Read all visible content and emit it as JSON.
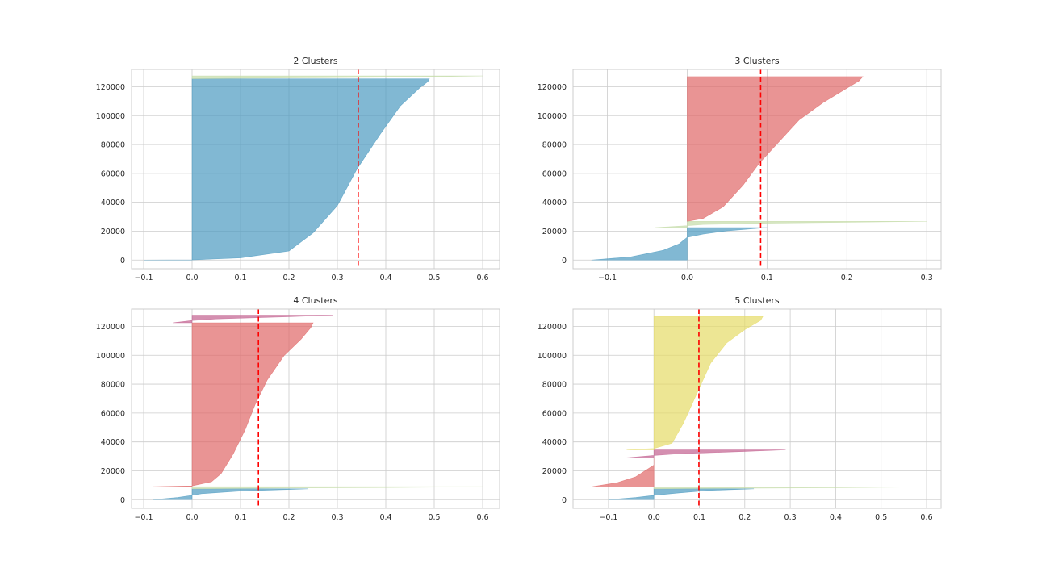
{
  "chart_data": [
    {
      "type": "area",
      "title": "2 Clusters",
      "xlabel": "",
      "ylabel": "",
      "xlim": [
        -0.125,
        0.635
      ],
      "ylim": [
        -6000,
        132000
      ],
      "xticks": [
        -0.1,
        0.0,
        0.1,
        0.2,
        0.3,
        0.4,
        0.5,
        0.6
      ],
      "xtick_labels": [
        "−0.1",
        "0.0",
        "0.1",
        "0.2",
        "0.3",
        "0.4",
        "0.5",
        "0.6"
      ],
      "yticks": [
        0,
        20000,
        40000,
        60000,
        80000,
        100000,
        120000
      ],
      "ytick_labels": [
        "0",
        "20000",
        "40000",
        "60000",
        "80000",
        "100000",
        "120000"
      ],
      "grid": true,
      "mean_line": {
        "x": 0.343,
        "color": "#ff0000"
      },
      "series": [
        {
          "color": "#4c9ac0",
          "ylow": 0,
          "yhigh": 125500,
          "profile": [
            [
              0,
              -0.1
            ],
            [
              0.001,
              0.0
            ],
            [
              0.012,
              0.1
            ],
            [
              0.05,
              0.2
            ],
            [
              0.15,
              0.25
            ],
            [
              0.3,
              0.3
            ],
            [
              0.5,
              0.34
            ],
            [
              0.7,
              0.39
            ],
            [
              0.85,
              0.43
            ],
            [
              0.95,
              0.47
            ],
            [
              0.985,
              0.487
            ],
            [
              1,
              0.49
            ]
          ]
        },
        {
          "color": "#c5dba8",
          "ylow": 125500,
          "yhigh": 127500,
          "profile": [
            [
              0,
              0.0
            ],
            [
              0.3,
              0.2
            ],
            [
              0.6,
              0.45
            ],
            [
              1,
              0.6
            ]
          ]
        }
      ]
    },
    {
      "type": "area",
      "title": "3 Clusters",
      "xlabel": "",
      "ylabel": "",
      "xlim": [
        -0.143,
        0.318
      ],
      "ylim": [
        -6000,
        132000
      ],
      "xticks": [
        -0.1,
        0.0,
        0.1,
        0.2,
        0.3
      ],
      "xtick_labels": [
        "−0.1",
        "0.0",
        "0.1",
        "0.2",
        "0.3"
      ],
      "yticks": [
        0,
        20000,
        40000,
        60000,
        80000,
        100000,
        120000
      ],
      "ytick_labels": [
        "0",
        "20000",
        "40000",
        "60000",
        "80000",
        "100000",
        "120000"
      ],
      "grid": true,
      "mean_line": {
        "x": 0.092,
        "color": "#ff0000"
      },
      "series": [
        {
          "color": "#4c9ac0",
          "ylow": 0,
          "yhigh": 22500,
          "profile": [
            [
              0,
              -0.12
            ],
            [
              0.1,
              -0.07
            ],
            [
              0.3,
              -0.03
            ],
            [
              0.5,
              -0.01
            ],
            [
              0.7,
              0.0
            ],
            [
              0.8,
              0.02
            ],
            [
              0.9,
              0.05
            ],
            [
              1,
              0.1
            ]
          ]
        },
        {
          "color": "#c5dba8",
          "ylow": 22500,
          "yhigh": 26800,
          "profile": [
            [
              0,
              -0.04
            ],
            [
              0.3,
              0.0
            ],
            [
              0.5,
              0.02
            ],
            [
              0.7,
              0.1
            ],
            [
              0.85,
              0.2
            ],
            [
              1,
              0.3
            ]
          ]
        },
        {
          "color": "#e06666",
          "ylow": 26800,
          "yhigh": 127000,
          "profile": [
            [
              0,
              0.0
            ],
            [
              0.02,
              0.02
            ],
            [
              0.1,
              0.045
            ],
            [
              0.25,
              0.07
            ],
            [
              0.4,
              0.09
            ],
            [
              0.55,
              0.115
            ],
            [
              0.7,
              0.14
            ],
            [
              0.82,
              0.17
            ],
            [
              0.92,
              0.2
            ],
            [
              0.97,
              0.215
            ],
            [
              1,
              0.22
            ]
          ]
        }
      ]
    },
    {
      "type": "area",
      "title": "4 Clusters",
      "xlabel": "",
      "ylabel": "",
      "xlim": [
        -0.125,
        0.635
      ],
      "ylim": [
        -6000,
        132000
      ],
      "xticks": [
        -0.1,
        0.0,
        0.1,
        0.2,
        0.3,
        0.4,
        0.5,
        0.6
      ],
      "xtick_labels": [
        "−0.1",
        "0.0",
        "0.1",
        "0.2",
        "0.3",
        "0.4",
        "0.5",
        "0.6"
      ],
      "yticks": [
        0,
        20000,
        40000,
        60000,
        80000,
        100000,
        120000
      ],
      "ytick_labels": [
        "0",
        "20000",
        "40000",
        "60000",
        "80000",
        "100000",
        "120000"
      ],
      "grid": true,
      "mean_line": {
        "x": 0.137,
        "color": "#ff0000"
      },
      "series": [
        {
          "color": "#4c9ac0",
          "ylow": 0,
          "yhigh": 7500,
          "profile": [
            [
              0,
              -0.08
            ],
            [
              0.2,
              -0.03
            ],
            [
              0.4,
              0.0
            ],
            [
              0.55,
              0.02
            ],
            [
              0.8,
              0.1
            ],
            [
              1,
              0.24
            ]
          ]
        },
        {
          "color": "#c5dba8",
          "ylow": 7500,
          "yhigh": 9000,
          "profile": [
            [
              0,
              0.0
            ],
            [
              0.3,
              0.15
            ],
            [
              0.6,
              0.4
            ],
            [
              1,
              0.6
            ]
          ]
        },
        {
          "color": "#e06666",
          "ylow": 9000,
          "yhigh": 122500,
          "profile": [
            [
              0,
              -0.08
            ],
            [
              0.005,
              0.0
            ],
            [
              0.03,
              0.04
            ],
            [
              0.08,
              0.06
            ],
            [
              0.2,
              0.085
            ],
            [
              0.35,
              0.11
            ],
            [
              0.5,
              0.13
            ],
            [
              0.65,
              0.155
            ],
            [
              0.8,
              0.19
            ],
            [
              0.9,
              0.225
            ],
            [
              0.97,
              0.245
            ],
            [
              1,
              0.25
            ]
          ]
        },
        {
          "color": "#c2608f",
          "ylow": 122500,
          "yhigh": 127800,
          "profile": [
            [
              0,
              -0.04
            ],
            [
              0.3,
              0.0
            ],
            [
              0.5,
              0.05
            ],
            [
              0.8,
              0.2
            ],
            [
              1,
              0.29
            ]
          ]
        }
      ]
    },
    {
      "type": "area",
      "title": "5 Clusters",
      "xlabel": "",
      "ylabel": "",
      "xlim": [
        -0.178,
        0.632
      ],
      "ylim": [
        -6000,
        132000
      ],
      "xticks": [
        -0.1,
        0.0,
        0.1,
        0.2,
        0.3,
        0.4,
        0.5,
        0.6
      ],
      "xtick_labels": [
        "−0.1",
        "0.0",
        "0.1",
        "0.2",
        "0.3",
        "0.4",
        "0.5",
        "0.6"
      ],
      "yticks": [
        0,
        20000,
        40000,
        60000,
        80000,
        100000,
        120000
      ],
      "ytick_labels": [
        "0",
        "20000",
        "40000",
        "60000",
        "80000",
        "100000",
        "120000"
      ],
      "grid": true,
      "mean_line": {
        "x": 0.099,
        "color": "#ff0000"
      },
      "series": [
        {
          "color": "#4c9ac0",
          "ylow": 0,
          "yhigh": 7500,
          "profile": [
            [
              0,
              -0.1
            ],
            [
              0.2,
              -0.04
            ],
            [
              0.4,
              0.0
            ],
            [
              0.6,
              0.05
            ],
            [
              0.85,
              0.12
            ],
            [
              1,
              0.22
            ]
          ]
        },
        {
          "color": "#c5dba8",
          "ylow": 7500,
          "yhigh": 8800,
          "profile": [
            [
              0,
              0.0
            ],
            [
              0.3,
              0.15
            ],
            [
              0.6,
              0.4
            ],
            [
              1,
              0.59
            ]
          ]
        },
        {
          "color": "#e06666",
          "ylow": 8800,
          "yhigh": 29000,
          "profile": [
            [
              0,
              -0.14
            ],
            [
              0.15,
              -0.08
            ],
            [
              0.35,
              -0.04
            ],
            [
              0.55,
              -0.02
            ],
            [
              0.75,
              0.0
            ],
            [
              1,
              0.0
            ]
          ]
        },
        {
          "color": "#c2608f",
          "ylow": 29000,
          "yhigh": 34500,
          "profile": [
            [
              0,
              -0.06
            ],
            [
              0.3,
              0.0
            ],
            [
              0.5,
              0.05
            ],
            [
              0.8,
              0.2
            ],
            [
              1,
              0.29
            ]
          ]
        },
        {
          "color": "#e5db66",
          "ylow": 34500,
          "yhigh": 127000,
          "profile": [
            [
              0,
              -0.06
            ],
            [
              0.01,
              0.0
            ],
            [
              0.05,
              0.04
            ],
            [
              0.2,
              0.065
            ],
            [
              0.35,
              0.085
            ],
            [
              0.5,
              0.105
            ],
            [
              0.65,
              0.125
            ],
            [
              0.8,
              0.16
            ],
            [
              0.9,
              0.2
            ],
            [
              0.97,
              0.235
            ],
            [
              1,
              0.24
            ]
          ]
        }
      ]
    }
  ]
}
